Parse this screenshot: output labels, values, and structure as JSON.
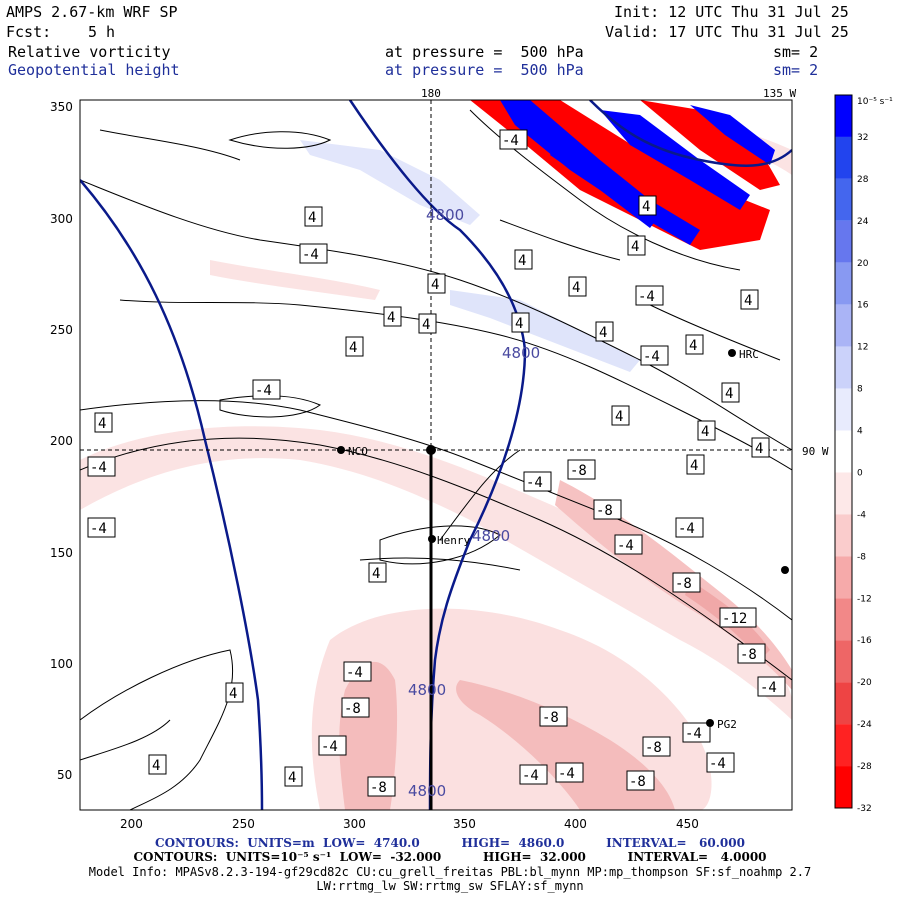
{
  "header": {
    "model": "AMPS 2.67-km WRF SP",
    "init": "Init: 12 UTC Thu 31 Jul 25",
    "fcst_label": "Fcst:",
    "fcst_value": "5 h",
    "valid": "Valid: 17 UTC Thu 31 Jul 25",
    "field1": "Relative vorticity",
    "field1_level": "at pressure =  500 hPa",
    "field1_sm": "sm= 2",
    "field2": "Geopotential height",
    "field2_level": "at pressure =  500 hPa",
    "field2_sm": "sm= 2"
  },
  "map_labels": {
    "lon_180": "180",
    "lon_135w": "135 W",
    "lon_90w": "90 W"
  },
  "axes": {
    "x_ticks": [
      "200",
      "250",
      "300",
      "350",
      "400",
      "450"
    ],
    "y_ticks": [
      "350",
      "300",
      "250",
      "200",
      "150",
      "100",
      "50"
    ]
  },
  "colorbar": {
    "unit": "10⁻⁵ s⁻¹",
    "ticks": [
      "32",
      "28",
      "24",
      "20",
      "16",
      "12",
      "8",
      "4",
      "0",
      "-4",
      "-8",
      "-12",
      "-16",
      "-20",
      "-24",
      "-28",
      "-32"
    ],
    "colors": [
      "#0000ff",
      "#2244ee",
      "#4466ee",
      "#6677ee",
      "#8899f2",
      "#aab4f6",
      "#cbd2fa",
      "#e8ebfd",
      "#ffffff",
      "#fde8e8",
      "#facccc",
      "#f6aaaa",
      "#f28888",
      "#ee6666",
      "#ee4444",
      "#ff2222",
      "#ff0000"
    ]
  },
  "stations": {
    "nco": "NCO",
    "henry": "Henry",
    "hrc": "HRC",
    "pg2": "PG2"
  },
  "height_contour_label": "4800",
  "vort_labels": [
    "4",
    "-4",
    "-8",
    "-12"
  ],
  "footer": {
    "line1": "CONTOURS:  UNITS=m  LOW=  4740.0          HIGH=  4860.0          INTERVAL=   60.000",
    "line2": "CONTOURS:  UNITS=10⁻⁵ s⁻¹  LOW=  -32.000          HIGH=  32.000          INTERVAL=   4.0000",
    "line3": "Model Info: MPASv8.2.3-194-gf29cd82c CU:cu_grell_freitas PBL:bl_mynn MP:mp_thompson SF:sf_noahmp 2.7",
    "line4": "LW:rrtmg_lw SW:rrtmg_sw SFLAY:sf_mynn"
  }
}
